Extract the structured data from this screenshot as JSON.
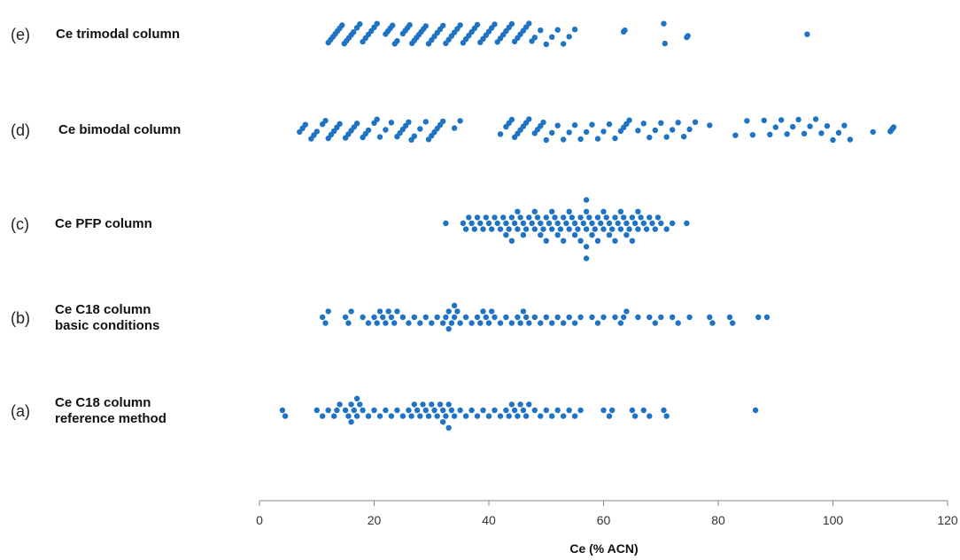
{
  "chart_data": {
    "type": "scatter",
    "style": "beeswarm / dot strip plot",
    "title": "",
    "xlabel": "Ce (% ACN)",
    "ylabel": "",
    "xlim": [
      0,
      120
    ],
    "xticks": [
      0,
      20,
      40,
      60,
      80,
      100,
      120
    ],
    "grid": false,
    "legend": "none",
    "point_color": "#1f73c4",
    "series": [
      {
        "letter": "(e)",
        "name": [
          "Ce trimodal column"
        ],
        "layout": "diagonal",
        "values": [
          12,
          12.4,
          12.8,
          13.2,
          13.6,
          14,
          14.4,
          14.8,
          15.2,
          15.6,
          16,
          16.4,
          17,
          17.5,
          18,
          18.5,
          19,
          19.5,
          20,
          20.5,
          22,
          22.4,
          22.8,
          23.2,
          23.6,
          24,
          25,
          25.4,
          25.8,
          26.2,
          26.6,
          27,
          27.4,
          27.8,
          28.2,
          28.6,
          29,
          29.5,
          30,
          30.5,
          31,
          31.5,
          32,
          32.5,
          33,
          33.5,
          34,
          34.5,
          35,
          35.5,
          36,
          36.5,
          37,
          37.5,
          38,
          38.5,
          39,
          39.5,
          40,
          40.5,
          41,
          41.5,
          42,
          42.5,
          43,
          43.5,
          44,
          44.5,
          45,
          45.5,
          46,
          46.5,
          47,
          47.5,
          48,
          49,
          50,
          51,
          52,
          53,
          54,
          55,
          63.5,
          63.7,
          70.5,
          70.7,
          74.5,
          74.7,
          95.5
        ]
      },
      {
        "letter": "(d)",
        "name": [
          "Ce bimodal column"
        ],
        "layout": "diagonal",
        "values": [
          7,
          7.5,
          8,
          9,
          9.5,
          10,
          11,
          11.5,
          12,
          12.5,
          13,
          13.5,
          14,
          15,
          15.5,
          16,
          16.5,
          17,
          18,
          18.5,
          19,
          20,
          20.5,
          21,
          22,
          23,
          24,
          24.5,
          25,
          25.5,
          26,
          26.5,
          27,
          28,
          29,
          29.5,
          30,
          30.5,
          31,
          31.5,
          32,
          34,
          35,
          42,
          43,
          43.5,
          44,
          44.5,
          45,
          45.5,
          46,
          46.5,
          47,
          48,
          48.5,
          49,
          49.5,
          50,
          51,
          52,
          53,
          54,
          55,
          56,
          57,
          58,
          59,
          60,
          61,
          62,
          63,
          63.5,
          64,
          64.5,
          66,
          67,
          68,
          69,
          70,
          71,
          72,
          73,
          74,
          75,
          76,
          78.5,
          83,
          85,
          86,
          88,
          89,
          90,
          91,
          92,
          93,
          94,
          95,
          96,
          97,
          98,
          99,
          100,
          101,
          102,
          103,
          107,
          110,
          110.2,
          110.4,
          110.6
        ]
      },
      {
        "letter": "(c)",
        "name": [
          "Ce PFP column"
        ],
        "layout": "swarm",
        "values": [
          32.5,
          35.5,
          36,
          36.5,
          37,
          37.5,
          38,
          38.5,
          39,
          39.5,
          40,
          40.5,
          41,
          41.5,
          42,
          42.5,
          43,
          43,
          43.5,
          44,
          44,
          44.5,
          45,
          45,
          45.5,
          46,
          46,
          46.5,
          47,
          47.5,
          48,
          48,
          48.5,
          49,
          49,
          49.5,
          50,
          50,
          50.5,
          51,
          51,
          51.5,
          52,
          52,
          52.5,
          53,
          53,
          53.5,
          54,
          54,
          54.5,
          55,
          55,
          55.5,
          56,
          56,
          56.5,
          57,
          57,
          57,
          57,
          57,
          57.5,
          58,
          58,
          58.5,
          59,
          59,
          59.5,
          60,
          60,
          60.5,
          61,
          61,
          61.5,
          62,
          62,
          62.5,
          63,
          63,
          63.5,
          64,
          64,
          64.5,
          65,
          65,
          65.5,
          66,
          66,
          66.5,
          67,
          67.5,
          68,
          68.5,
          69,
          69.5,
          70,
          71,
          72,
          74.5
        ]
      },
      {
        "letter": "(b)",
        "name": [
          "Ce C18 column",
          "basic conditions"
        ],
        "layout": "swarm",
        "values": [
          11,
          11.5,
          12,
          15,
          15.5,
          16,
          18,
          19,
          20,
          20.5,
          21,
          21.5,
          22,
          22.5,
          23,
          23.5,
          24,
          25,
          26,
          27,
          28,
          29,
          30,
          31,
          32,
          32.5,
          33,
          33,
          33.5,
          34,
          34,
          34.5,
          35,
          36,
          37,
          38,
          38.5,
          39,
          39.5,
          40,
          40.5,
          41,
          42,
          43,
          44,
          45,
          45.5,
          46,
          46.5,
          47,
          48,
          49,
          50,
          51,
          52,
          53,
          54,
          55,
          56,
          58,
          59,
          60,
          62,
          63,
          63.5,
          64,
          66,
          68,
          69,
          70,
          72,
          73,
          75,
          78.5,
          79,
          82,
          82.5,
          87,
          88.5
        ]
      },
      {
        "letter": "(a)",
        "name": [
          "Ce C18 column",
          "reference method"
        ],
        "layout": "swarm",
        "values": [
          4,
          4.5,
          10,
          11,
          12,
          13,
          13.5,
          14,
          15,
          15.5,
          16,
          16,
          16.5,
          17,
          17,
          17.5,
          18,
          19,
          20,
          21,
          22,
          23,
          24,
          25,
          26,
          26.5,
          27,
          27.5,
          28,
          28.5,
          29,
          29.5,
          30,
          30.5,
          31,
          31.5,
          32,
          32,
          32.5,
          33,
          33,
          33.5,
          34,
          35,
          36,
          37,
          38,
          39,
          40,
          41,
          42,
          43,
          43.5,
          44,
          44.5,
          45,
          45.5,
          46,
          46.5,
          47,
          48,
          49,
          50,
          51,
          52,
          53,
          54,
          55,
          56,
          60,
          61,
          61.5,
          65,
          65.5,
          67,
          68,
          70.5,
          71,
          86.5
        ]
      }
    ]
  }
}
